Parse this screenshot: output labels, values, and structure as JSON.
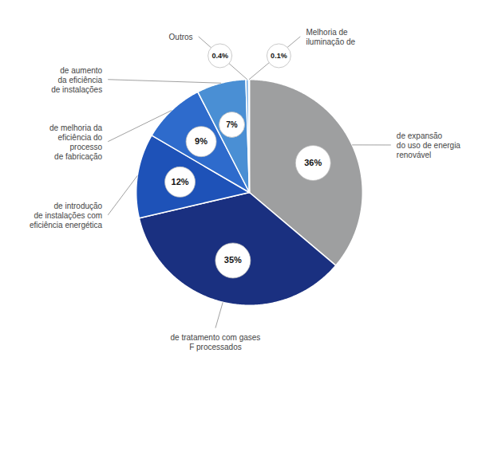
{
  "chart_data": {
    "type": "pie",
    "categories": [
      "de expansão\ndo uso de energia\nrenovável",
      "de tratamento com gases\nF processados",
      "de introdução\nde instalações com\neficiência energética",
      "de melhoria da\neficiência do\nprocesso\nde fabricação",
      "de aumento\nda eficiência\nde instalações",
      "Outros",
      "Melhoria de\niluminação de"
    ],
    "values": [
      36,
      35,
      12,
      9,
      7,
      0.4,
      0.1
    ],
    "value_labels": [
      "36%",
      "35%",
      "12%",
      "9%",
      "7%",
      "0.4%",
      "0.1%"
    ],
    "colors": [
      "#9e9fa0",
      "#1a3080",
      "#1e52b8",
      "#2e6bcc",
      "#4a8fd4",
      "#8ab8e8",
      "#b8d4f0"
    ],
    "data_labels": true
  }
}
